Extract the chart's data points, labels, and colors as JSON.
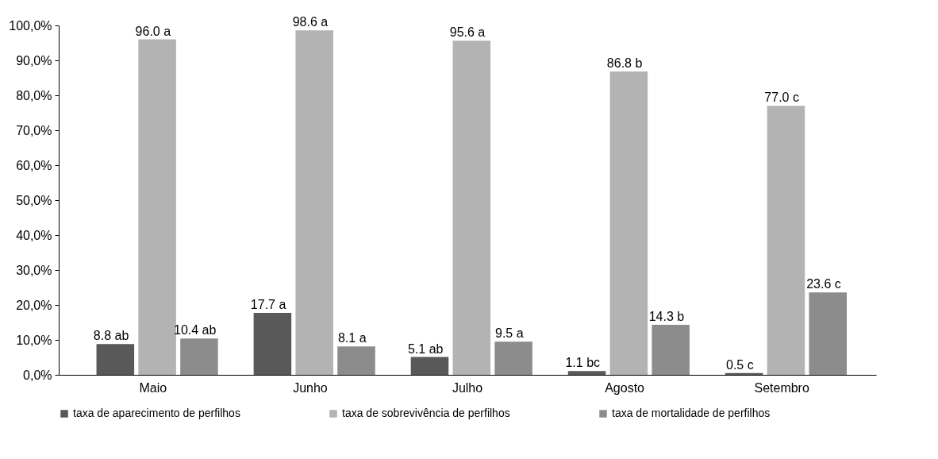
{
  "chart_data": {
    "type": "bar",
    "categories": [
      "Maio",
      "Junho",
      "Julho",
      "Agosto",
      "Setembro"
    ],
    "series": [
      {
        "name": "taxa de aparecimento de perfilhos",
        "color": "#595959",
        "values": [
          8.8,
          17.7,
          5.1,
          1.1,
          0.5
        ],
        "value_labels": [
          "8.8 ab",
          "17.7 a",
          "5.1 ab",
          "1.1 bc",
          "0.5 c"
        ]
      },
      {
        "name": "taxa de sobrevivência de perfilhos",
        "color": "#b3b3b3",
        "values": [
          96.0,
          98.6,
          95.6,
          86.8,
          77.0
        ],
        "value_labels": [
          "96.0 a",
          "98.6 a",
          "95.6 a",
          "86.8 b",
          "77.0 c"
        ]
      },
      {
        "name": "taxa de mortalidade de perfilhos",
        "color": "#8c8c8c",
        "values": [
          10.4,
          8.1,
          9.5,
          14.3,
          23.6
        ],
        "value_labels": [
          "10.4 ab",
          "8.1 a",
          "9.5 a",
          "14.3 b",
          "23.6 c"
        ]
      }
    ],
    "ylim": [
      0,
      100
    ],
    "yticks": [
      {
        "value": 0,
        "label": "0,0%"
      },
      {
        "value": 10,
        "label": "10,0%"
      },
      {
        "value": 20,
        "label": "20,0%"
      },
      {
        "value": 30,
        "label": "30,0%"
      },
      {
        "value": 40,
        "label": "40,0%"
      },
      {
        "value": 50,
        "label": "50,0%"
      },
      {
        "value": 60,
        "label": "60,0%"
      },
      {
        "value": 70,
        "label": "70,0%"
      },
      {
        "value": 80,
        "label": "80,0%"
      },
      {
        "value": 90,
        "label": "90,0%"
      },
      {
        "value": 100,
        "label": "100,0%"
      }
    ],
    "grid": false,
    "legend": "bottom"
  }
}
